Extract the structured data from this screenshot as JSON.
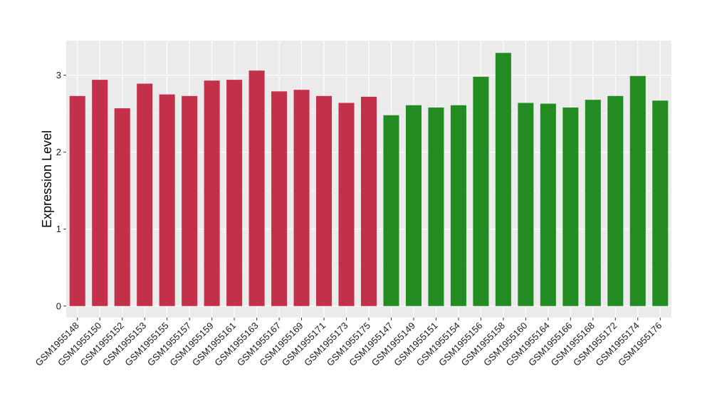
{
  "chart_data": {
    "type": "bar",
    "title": "",
    "xlabel": "",
    "ylabel": "Expression Level",
    "ylim": [
      -0.15,
      3.45
    ],
    "yticks": [
      0,
      1,
      2,
      3
    ],
    "grid": true,
    "legend": "none",
    "categories": [
      "GSM1955148",
      "GSM1955150",
      "GSM1955152",
      "GSM1955153",
      "GSM1955155",
      "GSM1955157",
      "GSM1955159",
      "GSM1955161",
      "GSM1955163",
      "GSM1955167",
      "GSM1955169",
      "GSM1955171",
      "GSM1955173",
      "GSM1955175",
      "GSM1955147",
      "GSM1955149",
      "GSM1955151",
      "GSM1955154",
      "GSM1955156",
      "GSM1955158",
      "GSM1955160",
      "GSM1955164",
      "GSM1955166",
      "GSM1955168",
      "GSM1955172",
      "GSM1955174",
      "GSM1955176"
    ],
    "values": [
      2.73,
      2.94,
      2.57,
      2.89,
      2.75,
      2.73,
      2.93,
      2.94,
      3.06,
      2.79,
      2.81,
      2.73,
      2.64,
      2.72,
      2.48,
      2.61,
      2.58,
      2.61,
      2.98,
      3.29,
      2.64,
      2.63,
      2.58,
      2.68,
      2.73,
      2.99,
      2.67
    ],
    "groups": [
      "A",
      "A",
      "A",
      "A",
      "A",
      "A",
      "A",
      "A",
      "A",
      "A",
      "A",
      "A",
      "A",
      "A",
      "B",
      "B",
      "B",
      "B",
      "B",
      "B",
      "B",
      "B",
      "B",
      "B",
      "B",
      "B",
      "B"
    ],
    "colors": {
      "A": "#c3304a",
      "B": "#228b22",
      "panel": "#ebebeb",
      "grid_major": "#ffffff",
      "grid_minor": "#f5f5f5"
    }
  }
}
